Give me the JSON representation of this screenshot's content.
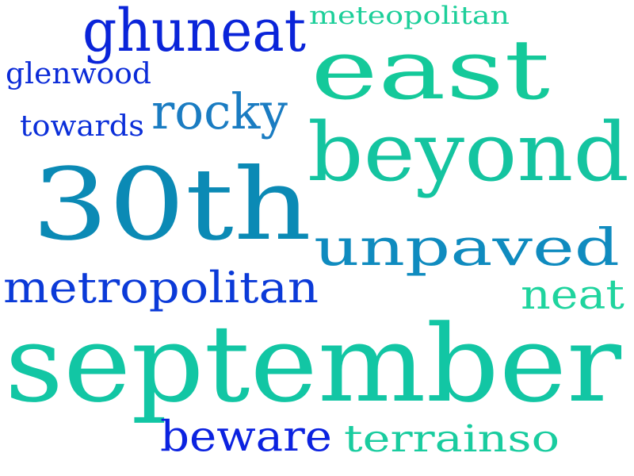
{
  "words": [
    {
      "id": "ghuneat",
      "text": "ghuneat",
      "color": "#0a24d9"
    },
    {
      "id": "meteopolitan",
      "text": "meteopolitan",
      "color": "#1dcf9a"
    },
    {
      "id": "east",
      "text": "east",
      "color": "#14c99a"
    },
    {
      "id": "glenwood",
      "text": "glenwood",
      "color": "#0b2bd8"
    },
    {
      "id": "rocky",
      "text": "rocky",
      "color": "#1a7cc2"
    },
    {
      "id": "towards",
      "text": "towards",
      "color": "#0b2fd9"
    },
    {
      "id": "beyond",
      "text": "beyond",
      "color": "#14c4a0"
    },
    {
      "id": "30th",
      "text": "30th",
      "color": "#0b8ab5"
    },
    {
      "id": "unpaved",
      "text": "unpaved",
      "color": "#0f8bbf"
    },
    {
      "id": "metropolitan",
      "text": "metropolitan",
      "color": "#0b3ad8"
    },
    {
      "id": "neat",
      "text": "neat",
      "color": "#1fd49e"
    },
    {
      "id": "september",
      "text": "september",
      "color": "#12c6a4"
    },
    {
      "id": "beware",
      "text": "beware",
      "color": "#0b22e0"
    },
    {
      "id": "terrainso",
      "text": "terrainso",
      "color": "#19cc9f"
    }
  ]
}
